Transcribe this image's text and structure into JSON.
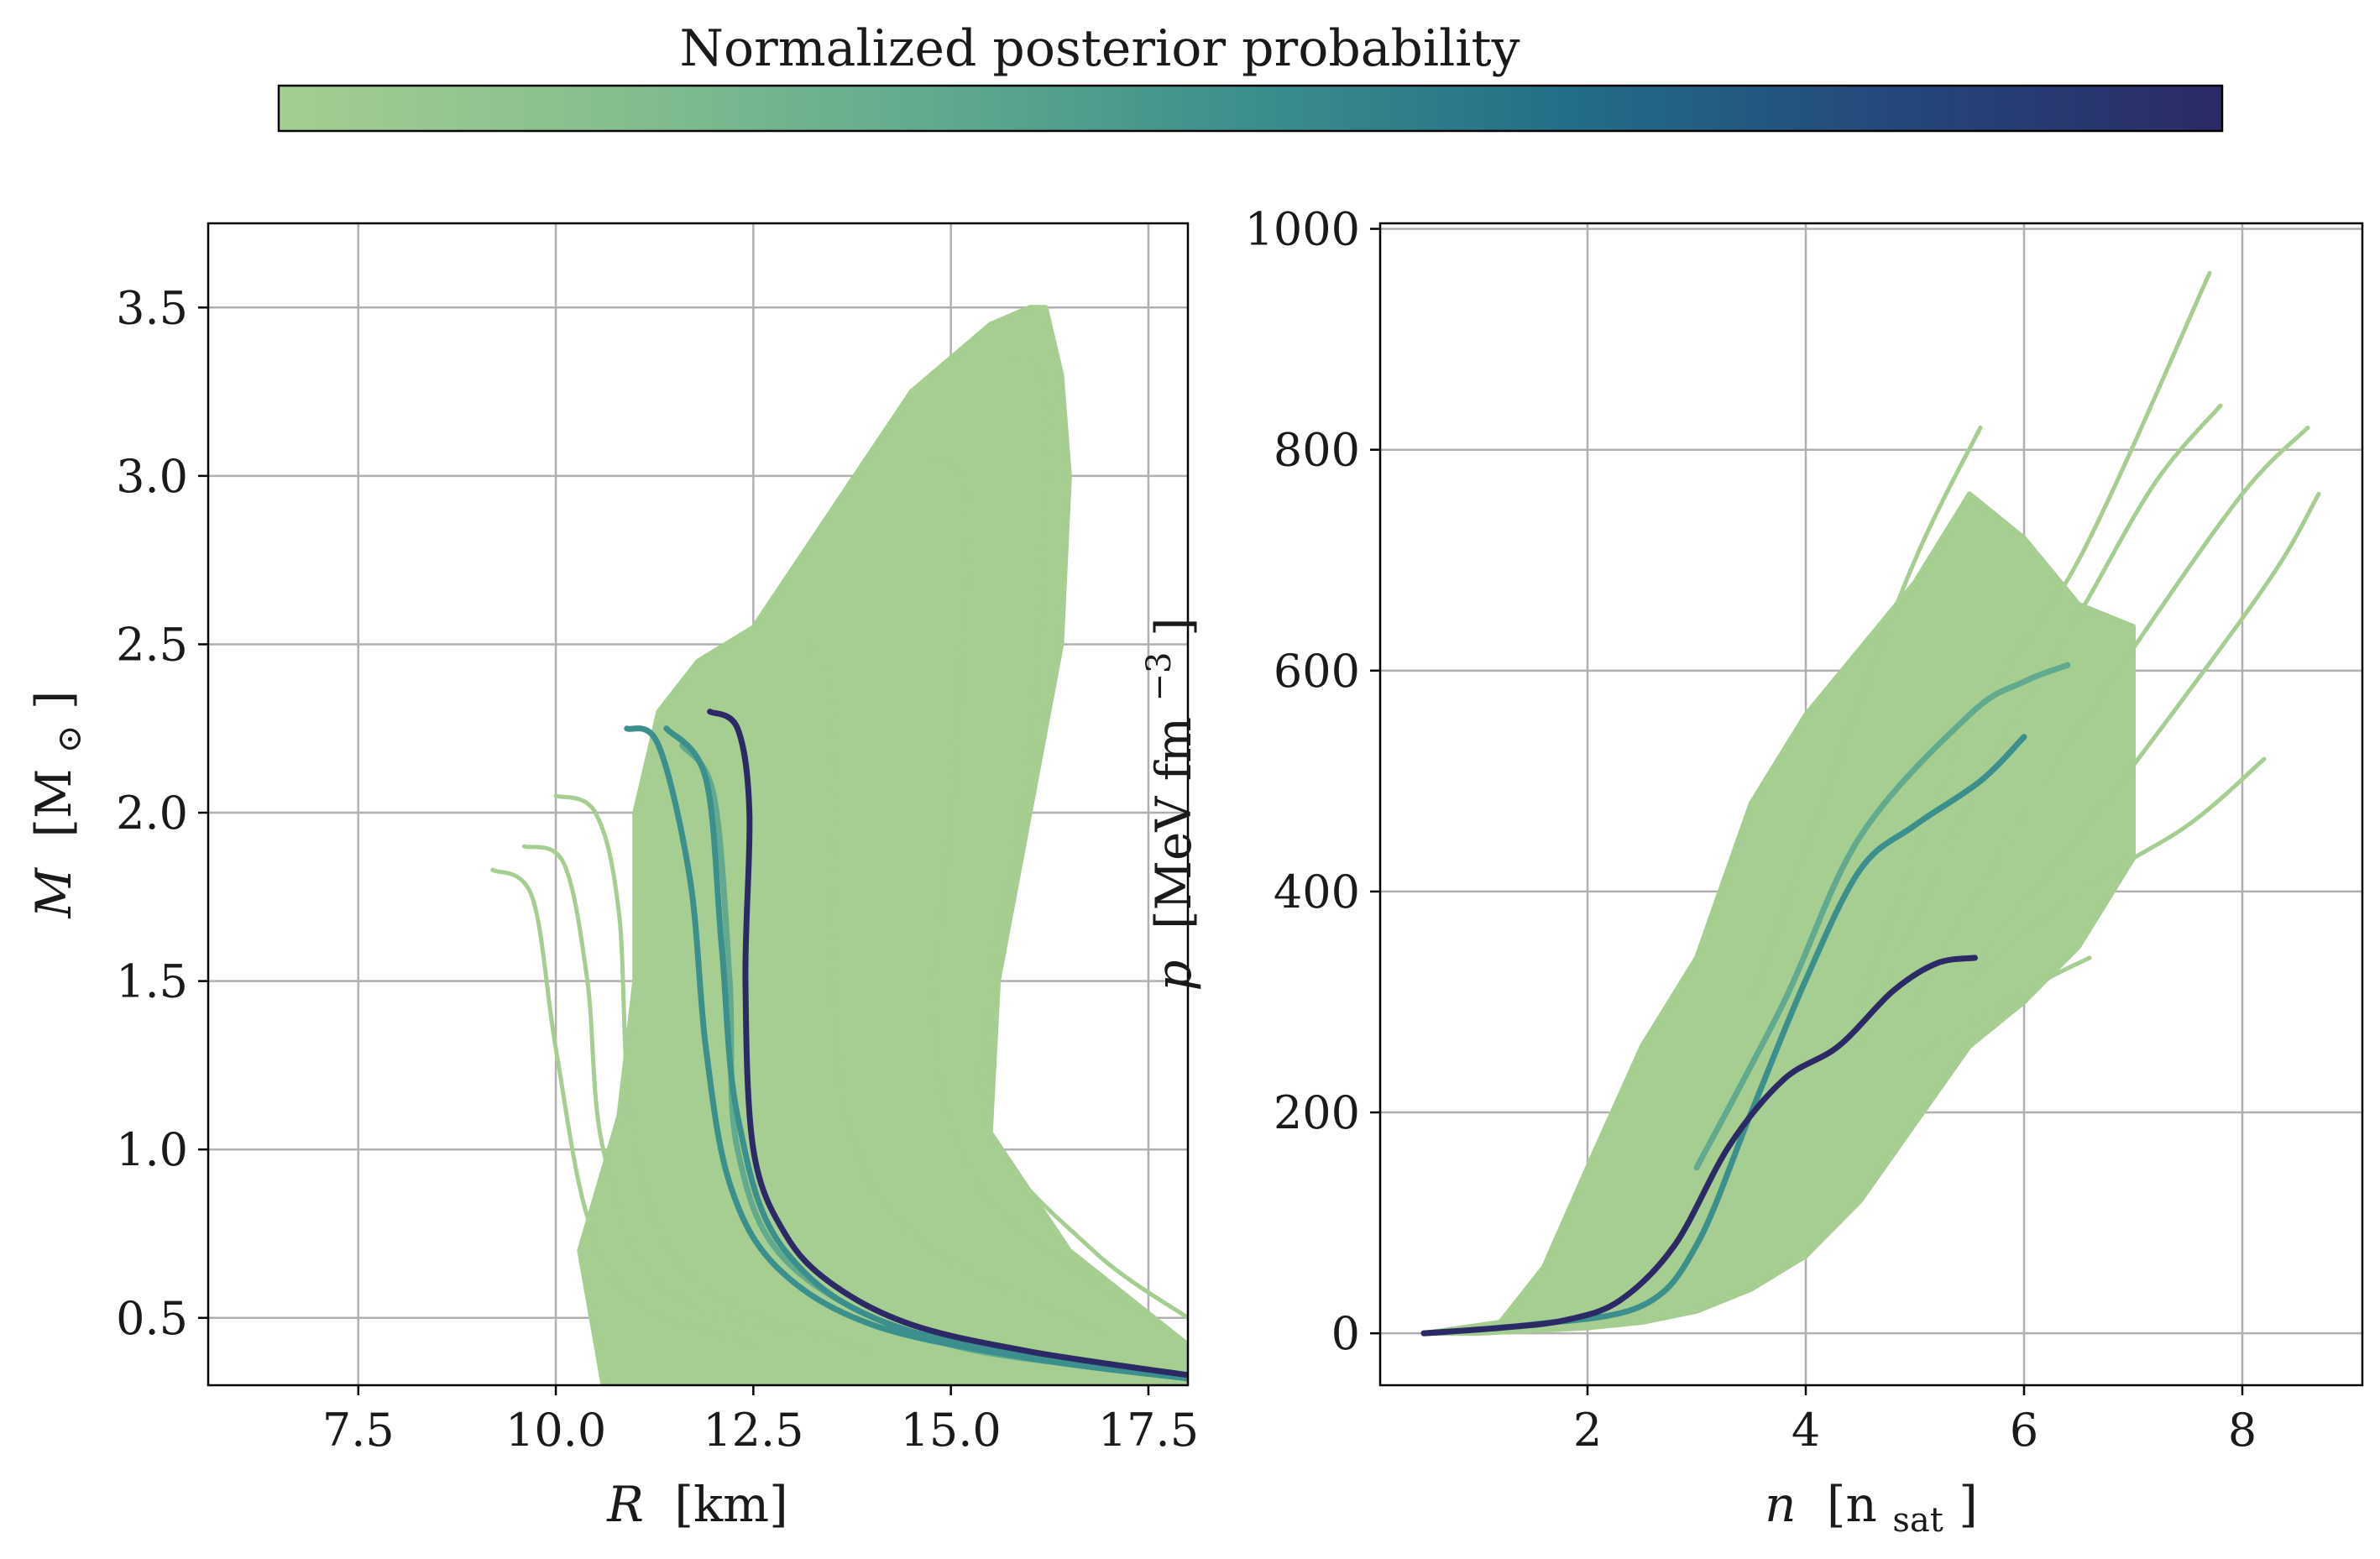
{
  "colorbar": {
    "label": "Normalized posterior probability",
    "colors": [
      "#a5ce90",
      "#86bf8f",
      "#62aa8e",
      "#3b8f8c",
      "#226d87",
      "#24477a",
      "#2b2a66"
    ]
  },
  "chart_data": [
    {
      "type": "line",
      "panel": "mass-radius",
      "xlabel_var": "R",
      "xlabel_unit": "[km]",
      "ylabel_var": "M",
      "ylabel_unit_open": "[M",
      "ylabel_unit_sub": "⊙",
      "ylabel_unit_close": "]",
      "xlim": [
        5.6,
        18.0
      ],
      "ylim": [
        0.3,
        3.75
      ],
      "xticks": [
        7.5,
        10.0,
        12.5,
        15.0,
        17.5
      ],
      "xtick_labels": [
        "7.5",
        "10.0",
        "12.5",
        "15.0",
        "17.5"
      ],
      "yticks": [
        0.5,
        1.0,
        1.5,
        2.0,
        2.5,
        3.0,
        3.5
      ],
      "ytick_labels": [
        "0.5",
        "1.0",
        "1.5",
        "2.0",
        "2.5",
        "3.0",
        "3.5"
      ],
      "grid": true,
      "band_color": "#a5ce90",
      "band": {
        "left": [
          [
            10.6,
            0.3
          ],
          [
            10.3,
            0.7
          ],
          [
            10.8,
            1.1
          ],
          [
            11.0,
            1.5
          ],
          [
            11.0,
            2.0
          ],
          [
            11.3,
            2.3
          ],
          [
            11.8,
            2.45
          ],
          [
            12.5,
            2.55
          ],
          [
            13.5,
            2.9
          ],
          [
            14.5,
            3.25
          ],
          [
            15.5,
            3.45
          ],
          [
            16.0,
            3.5
          ]
        ],
        "right": [
          [
            16.2,
            3.5
          ],
          [
            16.4,
            3.3
          ],
          [
            16.5,
            3.0
          ],
          [
            16.4,
            2.5
          ],
          [
            16.0,
            2.0
          ],
          [
            15.6,
            1.5
          ],
          [
            15.5,
            1.05
          ],
          [
            16.5,
            0.7
          ],
          [
            18.0,
            0.42
          ],
          [
            18.0,
            0.3
          ]
        ]
      },
      "series": [
        {
          "color": "#a5ce90",
          "points": [
            [
              9.2,
              1.83
            ],
            [
              9.7,
              1.75
            ],
            [
              10.0,
              1.3
            ],
            [
              10.4,
              0.8
            ],
            [
              11.0,
              0.55
            ],
            [
              12.5,
              0.42
            ]
          ]
        },
        {
          "color": "#a5ce90",
          "points": [
            [
              9.6,
              1.9
            ],
            [
              10.1,
              1.85
            ],
            [
              10.4,
              1.5
            ],
            [
              10.6,
              1.0
            ],
            [
              11.3,
              0.6
            ],
            [
              13.0,
              0.45
            ]
          ]
        },
        {
          "color": "#a5ce90",
          "points": [
            [
              10.0,
              2.05
            ],
            [
              10.5,
              2.0
            ],
            [
              10.8,
              1.7
            ],
            [
              11.0,
              1.0
            ],
            [
              11.8,
              0.6
            ],
            [
              14.0,
              0.4
            ]
          ]
        },
        {
          "color": "#a5ce90",
          "points": [
            [
              13.2,
              2.5
            ],
            [
              13.5,
              2.3
            ],
            [
              13.5,
              1.5
            ],
            [
              13.8,
              1.0
            ],
            [
              14.8,
              0.7
            ],
            [
              17.0,
              0.45
            ]
          ]
        },
        {
          "color": "#a5ce90",
          "points": [
            [
              14.8,
              3.05
            ],
            [
              15.2,
              2.9
            ],
            [
              15.0,
              2.0
            ],
            [
              14.8,
              1.3
            ],
            [
              15.5,
              0.85
            ],
            [
              17.5,
              0.5
            ]
          ]
        },
        {
          "color": "#a5ce90",
          "points": [
            [
              15.8,
              3.35
            ],
            [
              16.2,
              3.2
            ],
            [
              16.0,
              2.2
            ],
            [
              15.5,
              1.5
            ],
            [
              15.5,
              1.05
            ],
            [
              16.8,
              0.7
            ],
            [
              18.0,
              0.5
            ]
          ]
        },
        {
          "color": "#62aa8e",
          "points": [
            [
              11.6,
              2.2
            ],
            [
              12.0,
              2.05
            ],
            [
              12.2,
              1.5
            ],
            [
              12.3,
              1.0
            ],
            [
              13.0,
              0.65
            ],
            [
              15.0,
              0.42
            ],
            [
              18.0,
              0.33
            ]
          ]
        },
        {
          "color": "#3b8f8c",
          "points": [
            [
              10.9,
              2.25
            ],
            [
              11.3,
              2.2
            ],
            [
              11.7,
              1.8
            ],
            [
              11.9,
              1.3
            ],
            [
              12.2,
              0.9
            ],
            [
              12.8,
              0.65
            ],
            [
              14.0,
              0.48
            ],
            [
              16.0,
              0.38
            ],
            [
              18.0,
              0.32
            ]
          ]
        },
        {
          "color": "#3b8f8c",
          "points": [
            [
              11.4,
              2.25
            ],
            [
              11.9,
              2.1
            ],
            [
              12.1,
              1.6
            ],
            [
              12.3,
              1.1
            ],
            [
              12.9,
              0.7
            ],
            [
              14.5,
              0.46
            ],
            [
              18.0,
              0.33
            ]
          ]
        },
        {
          "color": "#2b2a66",
          "points": [
            [
              11.95,
              2.3
            ],
            [
              12.3,
              2.25
            ],
            [
              12.45,
              2.0
            ],
            [
              12.4,
              1.5
            ],
            [
              12.5,
              1.0
            ],
            [
              12.9,
              0.75
            ],
            [
              13.5,
              0.6
            ],
            [
              14.5,
              0.48
            ],
            [
              16.0,
              0.4
            ],
            [
              18.0,
              0.33
            ]
          ]
        }
      ]
    },
    {
      "type": "line",
      "panel": "pressure-density",
      "xlabel_var": "n",
      "xlabel_unit_open": "[n",
      "xlabel_unit_sub": "sat",
      "xlabel_unit_close": "]",
      "ylabel_var": "p",
      "ylabel_unit_open": "[MeV fm",
      "ylabel_unit_sup": "−3",
      "ylabel_unit_close": "]",
      "xlim": [
        0.1,
        9.1
      ],
      "ylim": [
        -47,
        1005
      ],
      "xticks": [
        2,
        4,
        6,
        8
      ],
      "xtick_labels": [
        "2",
        "4",
        "6",
        "8"
      ],
      "yticks": [
        0,
        200,
        400,
        600,
        800,
        1000
      ],
      "ytick_labels": [
        "0",
        "200",
        "400",
        "600",
        "800",
        "1000"
      ],
      "grid": true,
      "band_color": "#a5ce90",
      "band": {
        "upper": [
          [
            0.5,
            0
          ],
          [
            1.2,
            10
          ],
          [
            1.6,
            60
          ],
          [
            2.0,
            150
          ],
          [
            2.5,
            260
          ],
          [
            3.0,
            340
          ],
          [
            3.5,
            480
          ],
          [
            4.0,
            560
          ],
          [
            4.5,
            620
          ],
          [
            5.0,
            680
          ],
          [
            5.5,
            760
          ],
          [
            6.0,
            720
          ],
          [
            6.5,
            660
          ],
          [
            7.0,
            640
          ]
        ],
        "lower": [
          [
            7.0,
            430
          ],
          [
            6.5,
            350
          ],
          [
            6.0,
            300
          ],
          [
            5.5,
            260
          ],
          [
            5.0,
            190
          ],
          [
            4.5,
            120
          ],
          [
            4.0,
            70
          ],
          [
            3.5,
            40
          ],
          [
            3.0,
            20
          ],
          [
            2.5,
            10
          ],
          [
            2.0,
            5
          ],
          [
            1.0,
            0
          ],
          [
            0.5,
            0
          ]
        ]
      },
      "series": [
        {
          "color": "#a5ce90",
          "points": [
            [
              4.5,
              300
            ],
            [
              5.5,
              550
            ],
            [
              6.5,
              700
            ],
            [
              7.7,
              960
            ]
          ]
        },
        {
          "color": "#a5ce90",
          "points": [
            [
              4.5,
              260
            ],
            [
              5.5,
              480
            ],
            [
              6.5,
              650
            ],
            [
              7.2,
              770
            ],
            [
              7.8,
              840
            ]
          ]
        },
        {
          "color": "#a5ce90",
          "points": [
            [
              5.0,
              300
            ],
            [
              6.0,
              470
            ],
            [
              7.0,
              620
            ],
            [
              8.0,
              760
            ],
            [
              8.6,
              820
            ]
          ]
        },
        {
          "color": "#a5ce90",
          "points": [
            [
              5.5,
              330
            ],
            [
              6.5,
              450
            ],
            [
              7.5,
              580
            ],
            [
              8.3,
              690
            ],
            [
              8.7,
              760
            ]
          ]
        },
        {
          "color": "#a5ce90",
          "points": [
            [
              5.5,
              320
            ],
            [
              6.5,
              400
            ],
            [
              7.5,
              460
            ],
            [
              8.2,
              520
            ]
          ]
        },
        {
          "color": "#a5ce90",
          "points": [
            [
              3.5,
              300
            ],
            [
              4.3,
              520
            ],
            [
              5.0,
              700
            ],
            [
              5.6,
              820
            ]
          ]
        },
        {
          "color": "#a5ce90",
          "points": [
            [
              5.0,
              250
            ],
            [
              6.0,
              310
            ],
            [
              6.6,
              340
            ]
          ]
        },
        {
          "color": "#62aa8e",
          "points": [
            [
              3.0,
              150
            ],
            [
              3.8,
              300
            ],
            [
              4.5,
              450
            ],
            [
              5.5,
              560
            ],
            [
              6.0,
              590
            ],
            [
              6.4,
              605
            ]
          ]
        },
        {
          "color": "#3b8f8c",
          "points": [
            [
              0.5,
              0
            ],
            [
              1.5,
              8
            ],
            [
              2.5,
              25
            ],
            [
              3.0,
              80
            ],
            [
              3.5,
              200
            ],
            [
              4.0,
              320
            ],
            [
              4.5,
              420
            ],
            [
              5.0,
              460
            ],
            [
              5.6,
              500
            ],
            [
              6.0,
              540
            ]
          ]
        },
        {
          "color": "#2b2a66",
          "points": [
            [
              0.5,
              0
            ],
            [
              1.2,
              5
            ],
            [
              1.8,
              12
            ],
            [
              2.3,
              30
            ],
            [
              2.8,
              80
            ],
            [
              3.3,
              170
            ],
            [
              3.8,
              230
            ],
            [
              4.3,
              260
            ],
            [
              4.8,
              310
            ],
            [
              5.2,
              335
            ],
            [
              5.55,
              340
            ]
          ]
        }
      ]
    }
  ]
}
